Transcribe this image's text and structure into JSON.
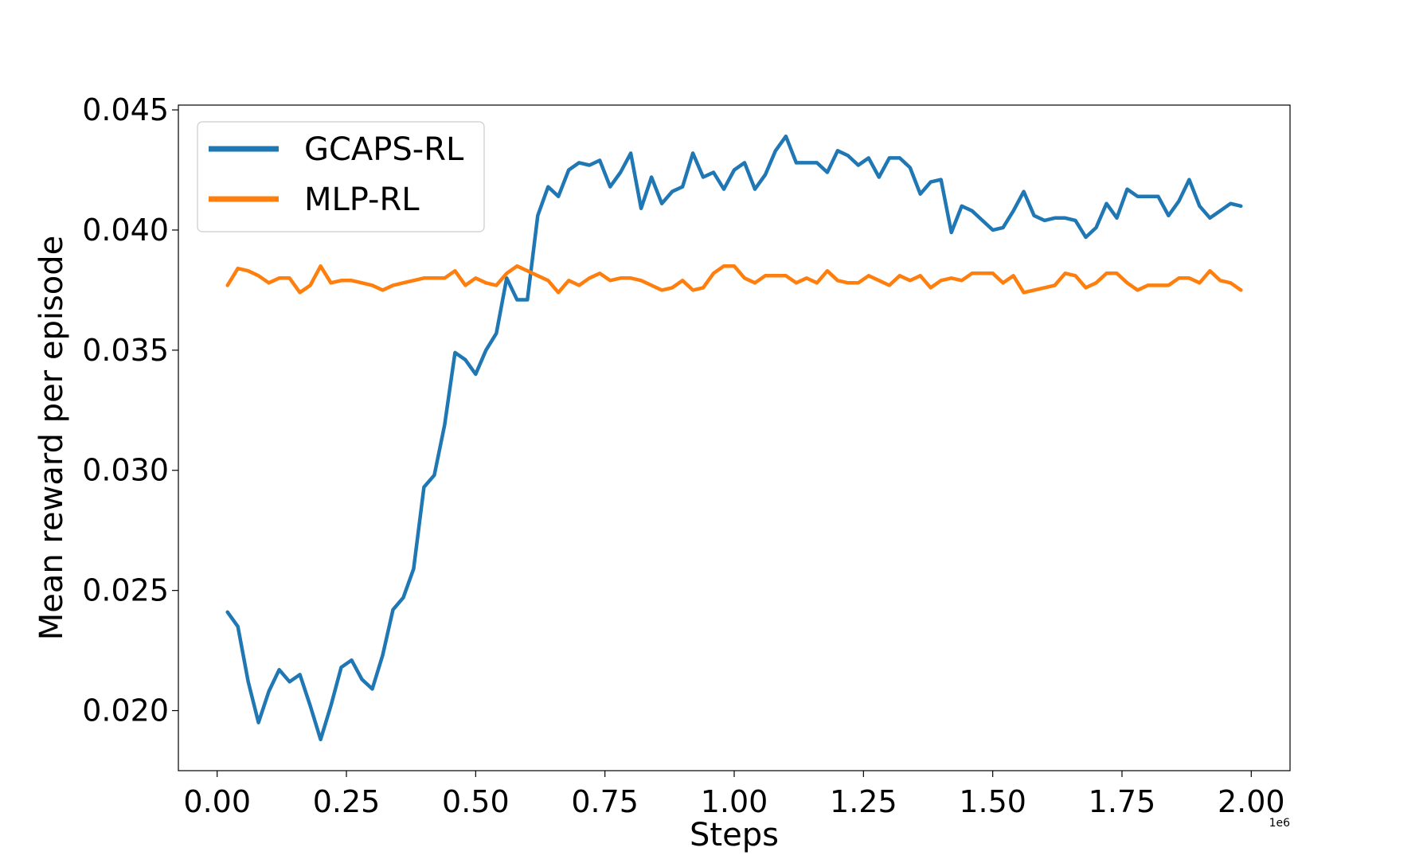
{
  "chart_data": {
    "type": "line",
    "title": "",
    "xlabel": "Steps",
    "ylabel": "Mean reward per episode",
    "x_offset_label": "1e6",
    "xlim": [
      -0.075,
      2.075
    ],
    "ylim": [
      0.0175,
      0.0452
    ],
    "x_ticks": [
      0.0,
      0.25,
      0.5,
      0.75,
      1.0,
      1.25,
      1.5,
      1.75,
      2.0
    ],
    "x_tick_labels": [
      "0.00",
      "0.25",
      "0.50",
      "0.75",
      "1.00",
      "1.25",
      "1.50",
      "1.75",
      "2.00"
    ],
    "y_ticks": [
      0.02,
      0.025,
      0.03,
      0.035,
      0.04,
      0.045
    ],
    "y_tick_labels": [
      "0.020",
      "0.025",
      "0.030",
      "0.035",
      "0.040",
      "0.045"
    ],
    "grid": false,
    "legend_position": "top-left",
    "series": [
      {
        "name": "GCAPS-RL",
        "color": "#1f77b4",
        "x": [
          0.02,
          0.04,
          0.06,
          0.08,
          0.1,
          0.12,
          0.14,
          0.16,
          0.18,
          0.2,
          0.22,
          0.24,
          0.26,
          0.28,
          0.3,
          0.32,
          0.34,
          0.36,
          0.38,
          0.4,
          0.42,
          0.44,
          0.46,
          0.48,
          0.5,
          0.52,
          0.54,
          0.56,
          0.58,
          0.6,
          0.62,
          0.64,
          0.66,
          0.68,
          0.7,
          0.72,
          0.74,
          0.76,
          0.78,
          0.8,
          0.82,
          0.84,
          0.86,
          0.88,
          0.9,
          0.92,
          0.94,
          0.96,
          0.98,
          1.0,
          1.02,
          1.04,
          1.06,
          1.08,
          1.1,
          1.12,
          1.14,
          1.16,
          1.18,
          1.2,
          1.22,
          1.24,
          1.26,
          1.28,
          1.3,
          1.32,
          1.34,
          1.36,
          1.38,
          1.4,
          1.42,
          1.44,
          1.46,
          1.48,
          1.5,
          1.52,
          1.54,
          1.56,
          1.58,
          1.6,
          1.62,
          1.64,
          1.66,
          1.68,
          1.7,
          1.72,
          1.74,
          1.76,
          1.78,
          1.8,
          1.82,
          1.84,
          1.86,
          1.88,
          1.9,
          1.92,
          1.94,
          1.96,
          1.98
        ],
        "y": [
          0.0241,
          0.0235,
          0.0212,
          0.0195,
          0.0208,
          0.0217,
          0.0212,
          0.0215,
          0.0202,
          0.0188,
          0.0202,
          0.0218,
          0.0221,
          0.0213,
          0.0209,
          0.0223,
          0.0242,
          0.0247,
          0.0259,
          0.0293,
          0.0298,
          0.0319,
          0.0349,
          0.0346,
          0.034,
          0.035,
          0.0357,
          0.038,
          0.0371,
          0.0371,
          0.0406,
          0.0418,
          0.0414,
          0.0425,
          0.0428,
          0.0427,
          0.0429,
          0.0418,
          0.0424,
          0.0432,
          0.0409,
          0.0422,
          0.0411,
          0.0416,
          0.0418,
          0.0432,
          0.0422,
          0.0424,
          0.0417,
          0.0425,
          0.0428,
          0.0417,
          0.0423,
          0.0433,
          0.0439,
          0.0428,
          0.0428,
          0.0428,
          0.0424,
          0.0433,
          0.0431,
          0.0427,
          0.043,
          0.0422,
          0.043,
          0.043,
          0.0426,
          0.0415,
          0.042,
          0.0421,
          0.0399,
          0.041,
          0.0408,
          0.0404,
          0.04,
          0.0401,
          0.0408,
          0.0416,
          0.0406,
          0.0404,
          0.0405,
          0.0405,
          0.0404,
          0.0397,
          0.0401,
          0.0411,
          0.0405,
          0.0417,
          0.0414,
          0.0414,
          0.0414,
          0.0406,
          0.0412,
          0.0421,
          0.041,
          0.0405,
          0.0408,
          0.0411,
          0.041
        ]
      },
      {
        "name": "MLP-RL",
        "color": "#ff7f0e",
        "x": [
          0.02,
          0.04,
          0.06,
          0.08,
          0.1,
          0.12,
          0.14,
          0.16,
          0.18,
          0.2,
          0.22,
          0.24,
          0.26,
          0.28,
          0.3,
          0.32,
          0.34,
          0.36,
          0.38,
          0.4,
          0.42,
          0.44,
          0.46,
          0.48,
          0.5,
          0.52,
          0.54,
          0.56,
          0.58,
          0.6,
          0.62,
          0.64,
          0.66,
          0.68,
          0.7,
          0.72,
          0.74,
          0.76,
          0.78,
          0.8,
          0.82,
          0.84,
          0.86,
          0.88,
          0.9,
          0.92,
          0.94,
          0.96,
          0.98,
          1.0,
          1.02,
          1.04,
          1.06,
          1.08,
          1.1,
          1.12,
          1.14,
          1.16,
          1.18,
          1.2,
          1.22,
          1.24,
          1.26,
          1.28,
          1.3,
          1.32,
          1.34,
          1.36,
          1.38,
          1.4,
          1.42,
          1.44,
          1.46,
          1.48,
          1.5,
          1.52,
          1.54,
          1.56,
          1.58,
          1.6,
          1.62,
          1.64,
          1.66,
          1.68,
          1.7,
          1.72,
          1.74,
          1.76,
          1.78,
          1.8,
          1.82,
          1.84,
          1.86,
          1.88,
          1.9,
          1.92,
          1.94,
          1.96,
          1.98
        ],
        "y": [
          0.0377,
          0.0384,
          0.0383,
          0.0381,
          0.0378,
          0.038,
          0.038,
          0.0374,
          0.0377,
          0.0385,
          0.0378,
          0.0379,
          0.0379,
          0.0378,
          0.0377,
          0.0375,
          0.0377,
          0.0378,
          0.0379,
          0.038,
          0.038,
          0.038,
          0.0383,
          0.0377,
          0.038,
          0.0378,
          0.0377,
          0.0382,
          0.0385,
          0.0383,
          0.0381,
          0.0379,
          0.0374,
          0.0379,
          0.0377,
          0.038,
          0.0382,
          0.0379,
          0.038,
          0.038,
          0.0379,
          0.0377,
          0.0375,
          0.0376,
          0.0379,
          0.0375,
          0.0376,
          0.0382,
          0.0385,
          0.0385,
          0.038,
          0.0378,
          0.0381,
          0.0381,
          0.0381,
          0.0378,
          0.038,
          0.0378,
          0.0383,
          0.0379,
          0.0378,
          0.0378,
          0.0381,
          0.0379,
          0.0377,
          0.0381,
          0.0379,
          0.0381,
          0.0376,
          0.0379,
          0.038,
          0.0379,
          0.0382,
          0.0382,
          0.0382,
          0.0378,
          0.0381,
          0.0374,
          0.0375,
          0.0376,
          0.0377,
          0.0382,
          0.0381,
          0.0376,
          0.0378,
          0.0382,
          0.0382,
          0.0378,
          0.0375,
          0.0377,
          0.0377,
          0.0377,
          0.038,
          0.038,
          0.0378,
          0.0383,
          0.0379,
          0.0378,
          0.0375
        ]
      }
    ]
  }
}
